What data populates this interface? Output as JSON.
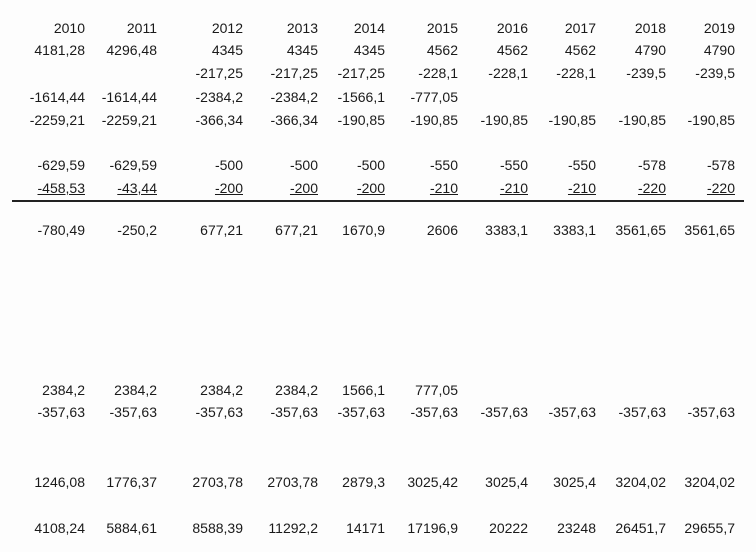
{
  "table": {
    "header": [
      "2010",
      "2011",
      "2012",
      "2013",
      "2014",
      "2015",
      "2016",
      "2017",
      "2018",
      "2019"
    ],
    "rows": [
      [
        "4181,28",
        "4296,48",
        "4345",
        "4345",
        "4345",
        "4562",
        "4562",
        "4562",
        "4790",
        "4790"
      ],
      [
        null,
        null,
        "-217,25",
        "-217,25",
        "-217,25",
        "-228,1",
        "-228,1",
        "-228,1",
        "-239,5",
        "-239,5"
      ],
      [
        "-1614,44",
        "-1614,44",
        "-2384,2",
        "-2384,2",
        "-1566,1",
        "-777,05",
        null,
        null,
        null,
        null
      ],
      [
        "-2259,21",
        "-2259,21",
        "-366,34",
        "-366,34",
        "-190,85",
        "-190,85",
        "-190,85",
        "-190,85",
        "-190,85",
        "-190,85"
      ],
      [
        "-629,59",
        "-629,59",
        "-500",
        "-500",
        "-500",
        "-550",
        "-550",
        "-550",
        "-578",
        "-578"
      ],
      [
        "-458,53",
        "-43,44",
        "-200",
        "-200",
        "-200",
        "-210",
        "-210",
        "-210",
        "-220",
        "-220"
      ],
      [
        "-780,49",
        "-250,2",
        "677,21",
        "677,21",
        "1670,9",
        "2606",
        "3383,1",
        "3383,1",
        "3561,65",
        "3561,65"
      ],
      [
        "2384,2",
        "2384,2",
        "2384,2",
        "2384,2",
        "1566,1",
        "777,05",
        null,
        null,
        null,
        null
      ],
      [
        "-357,63",
        "-357,63",
        "-357,63",
        "-357,63",
        "-357,63",
        "-357,63",
        "-357,63",
        "-357,63",
        "-357,63",
        "-357,63"
      ],
      [
        "1246,08",
        "1776,37",
        "2703,78",
        "2703,78",
        "2879,3",
        "3025,42",
        "3025,4",
        "3025,4",
        "3204,02",
        "3204,02"
      ],
      [
        "4108,24",
        "5884,61",
        "8588,39",
        "11292,2",
        "14171",
        "17196,9",
        "20222",
        "23248",
        "26451,7",
        "29655,7"
      ]
    ]
  }
}
